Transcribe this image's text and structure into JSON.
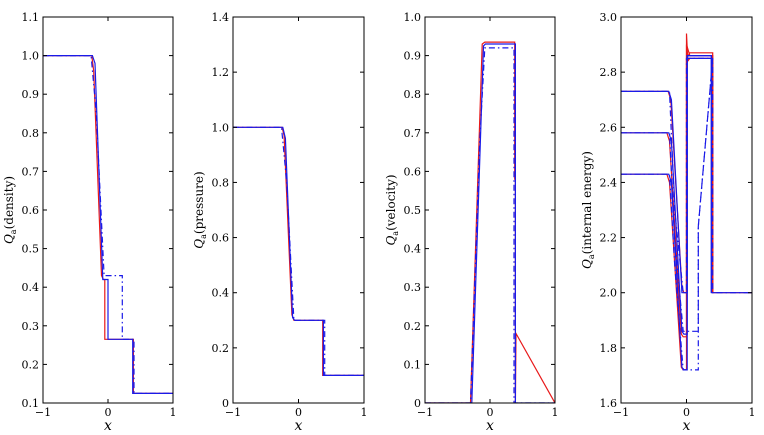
{
  "chart_data": [
    {
      "type": "line",
      "ylabel": "Q_a(density)",
      "ylabel_main": "Q",
      "ylabel_sub": "a",
      "ylabel_rest": "(density)",
      "xlabel": "x",
      "xlim": [
        -1,
        1
      ],
      "ylim": [
        0.1,
        1.1
      ],
      "xticks": [
        -1,
        0,
        1
      ],
      "xtick_labels": [
        "−1",
        "0",
        "1"
      ],
      "yticks": [
        0.1,
        0.2,
        0.3,
        0.4,
        0.5,
        0.6,
        0.7,
        0.8,
        0.9,
        1.0,
        1.1
      ],
      "ytick_labels": [
        "0.1",
        "0.2",
        "0.3",
        "0.4",
        "0.5",
        "0.6",
        "0.7",
        "0.8",
        "0.9",
        "1.0",
        "1.1"
      ],
      "series": [
        {
          "color": "#e8191a",
          "dash": "solid",
          "x": [
            -1,
            -0.25,
            -0.22,
            -0.1,
            -0.07,
            -0.05,
            -0.05,
            0.39,
            0.39,
            1
          ],
          "y": [
            1.0,
            1.0,
            0.96,
            0.43,
            0.42,
            0.42,
            0.265,
            0.265,
            0.125,
            0.125
          ]
        },
        {
          "color": "#1a1ae8",
          "dash": "solid",
          "x": [
            -1,
            -0.24,
            -0.2,
            -0.08,
            -0.06,
            0.0,
            0.0,
            0.38,
            0.38,
            1
          ],
          "y": [
            1.0,
            1.0,
            0.98,
            0.42,
            0.42,
            0.42,
            0.265,
            0.265,
            0.125,
            0.125
          ]
        },
        {
          "color": "#1a1ae8",
          "dash": "dashdot",
          "x": [
            -1,
            -0.26,
            -0.18,
            -0.06,
            0.22,
            0.22,
            0.4,
            0.4,
            1
          ],
          "y": [
            1.0,
            1.0,
            0.85,
            0.43,
            0.43,
            0.265,
            0.265,
            0.125,
            0.125
          ]
        }
      ]
    },
    {
      "type": "line",
      "ylabel": "Q_a(pressure)",
      "ylabel_main": "Q",
      "ylabel_sub": "a",
      "ylabel_rest": "(pressure)",
      "xlabel": "x",
      "xlim": [
        -1,
        1
      ],
      "ylim": [
        0,
        1.4
      ],
      "xticks": [
        -1,
        0,
        1
      ],
      "xtick_labels": [
        "−1",
        "0",
        "1"
      ],
      "yticks": [
        0,
        0.2,
        0.4,
        0.6,
        0.8,
        1.0,
        1.2,
        1.4
      ],
      "ytick_labels": [
        "0",
        "0.2",
        "0.4",
        "0.6",
        "0.8",
        "1.0",
        "1.2",
        "1.4"
      ],
      "series": [
        {
          "color": "#e8191a",
          "dash": "solid",
          "x": [
            -1,
            -0.25,
            -0.22,
            -0.1,
            -0.07,
            0.37,
            0.37,
            1
          ],
          "y": [
            1.0,
            1.0,
            0.97,
            0.32,
            0.3,
            0.3,
            0.1,
            0.1
          ]
        },
        {
          "color": "#1a1ae8",
          "dash": "solid",
          "x": [
            -1,
            -0.24,
            -0.2,
            -0.09,
            -0.06,
            0.38,
            0.38,
            1
          ],
          "y": [
            1.0,
            1.0,
            0.96,
            0.31,
            0.3,
            0.3,
            0.1,
            0.1
          ]
        },
        {
          "color": "#1a1ae8",
          "dash": "dashdot",
          "x": [
            -1,
            -0.26,
            -0.18,
            -0.07,
            0.4,
            0.4,
            1
          ],
          "y": [
            1.0,
            1.0,
            0.8,
            0.3,
            0.3,
            0.1,
            0.1
          ]
        }
      ]
    },
    {
      "type": "line",
      "ylabel": "Q_a(velocity)",
      "ylabel_main": "Q",
      "ylabel_sub": "a",
      "ylabel_rest": "(velocity)",
      "xlabel": "x",
      "xlim": [
        -1,
        1
      ],
      "ylim": [
        0,
        1.0
      ],
      "xticks": [
        -1,
        0,
        1
      ],
      "xtick_labels": [
        "−1",
        "0",
        "1"
      ],
      "yticks": [
        0,
        0.1,
        0.2,
        0.3,
        0.4,
        0.5,
        0.6,
        0.7,
        0.8,
        0.9,
        1.0
      ],
      "ytick_labels": [
        "0",
        "0.1",
        "0.2",
        "0.3",
        "0.4",
        "0.5",
        "0.6",
        "0.7",
        "0.8",
        "0.9",
        "1.0"
      ],
      "series": [
        {
          "color": "#e8191a",
          "dash": "solid",
          "x": [
            -1,
            -0.3,
            -0.12,
            -0.08,
            0.38,
            0.38,
            0.39,
            0.39,
            0.4,
            1
          ],
          "y": [
            0,
            0,
            0.93,
            0.935,
            0.935,
            0.58,
            0.58,
            0.0,
            0.18,
            0
          ]
        },
        {
          "color": "#1a1ae8",
          "dash": "solid",
          "x": [
            -1,
            -0.28,
            -0.1,
            -0.07,
            0.39,
            0.39,
            0.4,
            0.4,
            1
          ],
          "y": [
            0,
            0,
            0.925,
            0.93,
            0.93,
            0.0,
            0.0,
            0.0,
            0
          ]
        },
        {
          "color": "#1a1ae8",
          "dash": "dashdot",
          "x": [
            -1,
            -0.3,
            -0.16,
            -0.08,
            0.37,
            0.37,
            1
          ],
          "y": [
            0,
            0,
            0.67,
            0.92,
            0.92,
            0.0,
            0
          ]
        }
      ]
    },
    {
      "type": "line",
      "ylabel": "Q_a(internal energy)",
      "ylabel_main": "Q",
      "ylabel_sub": "a",
      "ylabel_rest": "(internal energy)",
      "xlabel": "x",
      "xlim": [
        -1,
        1
      ],
      "ylim": [
        1.6,
        3.0
      ],
      "xticks": [
        -1,
        0,
        1
      ],
      "xtick_labels": [
        "−1",
        "0",
        "1"
      ],
      "yticks": [
        1.6,
        1.8,
        2.0,
        2.2,
        2.4,
        2.6,
        2.8,
        3.0
      ],
      "ytick_labels": [
        "1.6",
        "1.8",
        "2.0",
        "2.2",
        "2.4",
        "2.6",
        "2.8",
        "3.0"
      ],
      "series": [
        {
          "color": "#e8191a",
          "dash": "solid",
          "x": [
            -1,
            -0.3,
            -0.26,
            -0.08,
            -0.05,
            0.0,
            0.0,
            0.02,
            0.05,
            0.4,
            0.4,
            1
          ],
          "y": [
            2.43,
            2.43,
            2.4,
            1.73,
            1.72,
            1.72,
            2.94,
            2.84,
            2.85,
            2.85,
            2.0,
            2.0
          ]
        },
        {
          "color": "#e8191a",
          "dash": "solid",
          "x": [
            -1,
            -0.3,
            -0.26,
            -0.08,
            -0.05,
            0.0,
            0.0,
            0.05,
            0.4,
            0.4
          ],
          "y": [
            2.58,
            2.58,
            2.55,
            1.85,
            1.84,
            1.84,
            2.9,
            2.86,
            2.86,
            2.0
          ]
        },
        {
          "color": "#e8191a",
          "dash": "solid",
          "x": [
            -1,
            -0.28,
            -0.24,
            -0.07,
            -0.04,
            0.0,
            0.0,
            0.05,
            0.4,
            0.4
          ],
          "y": [
            2.73,
            2.73,
            2.7,
            2.02,
            2.0,
            2.0,
            2.85,
            2.87,
            2.87,
            2.0
          ]
        },
        {
          "color": "#1a1ae8",
          "dash": "solid",
          "x": [
            -1,
            -0.27,
            -0.23,
            -0.07,
            -0.04,
            0.01,
            0.01,
            0.05,
            0.38,
            0.38,
            1
          ],
          "y": [
            2.43,
            2.43,
            2.4,
            1.73,
            1.72,
            1.72,
            2.85,
            2.85,
            2.85,
            2.0,
            2.0
          ]
        },
        {
          "color": "#1a1ae8",
          "dash": "solid",
          "x": [
            -1,
            -0.27,
            -0.23,
            -0.07,
            -0.04,
            0.01,
            0.01,
            0.38,
            0.38
          ],
          "y": [
            2.58,
            2.58,
            2.55,
            1.86,
            1.85,
            1.85,
            2.86,
            2.86,
            2.0
          ]
        },
        {
          "color": "#1a1ae8",
          "dash": "solid",
          "x": [
            -1,
            -0.27,
            -0.23,
            -0.07,
            -0.04,
            0.01,
            0.01,
            0.38,
            0.38
          ],
          "y": [
            2.73,
            2.73,
            2.7,
            2.0,
            2.0,
            2.0,
            2.86,
            2.86,
            2.0
          ]
        },
        {
          "color": "#1a1ae8",
          "dash": "dashdot",
          "x": [
            -1,
            -0.26,
            -0.18,
            -0.05,
            0.18,
            0.18,
            0.4,
            0.4,
            1
          ],
          "y": [
            2.43,
            2.43,
            2.1,
            1.72,
            1.72,
            2.24,
            2.85,
            2.0,
            2.0
          ]
        },
        {
          "color": "#1a1ae8",
          "dash": "dashdot",
          "x": [
            -1,
            -0.26,
            -0.18,
            -0.05,
            0.18,
            0.18,
            0.4
          ],
          "y": [
            2.58,
            2.58,
            2.2,
            1.86,
            1.86,
            2.24,
            2.85
          ]
        },
        {
          "color": "#1a1ae8",
          "dash": "dashdot",
          "x": [
            -1,
            -0.26,
            -0.18,
            -0.05,
            0.0,
            0.0,
            0.4
          ],
          "y": [
            2.73,
            2.73,
            2.3,
            2.0,
            2.0,
            2.85,
            2.85
          ]
        }
      ]
    }
  ]
}
